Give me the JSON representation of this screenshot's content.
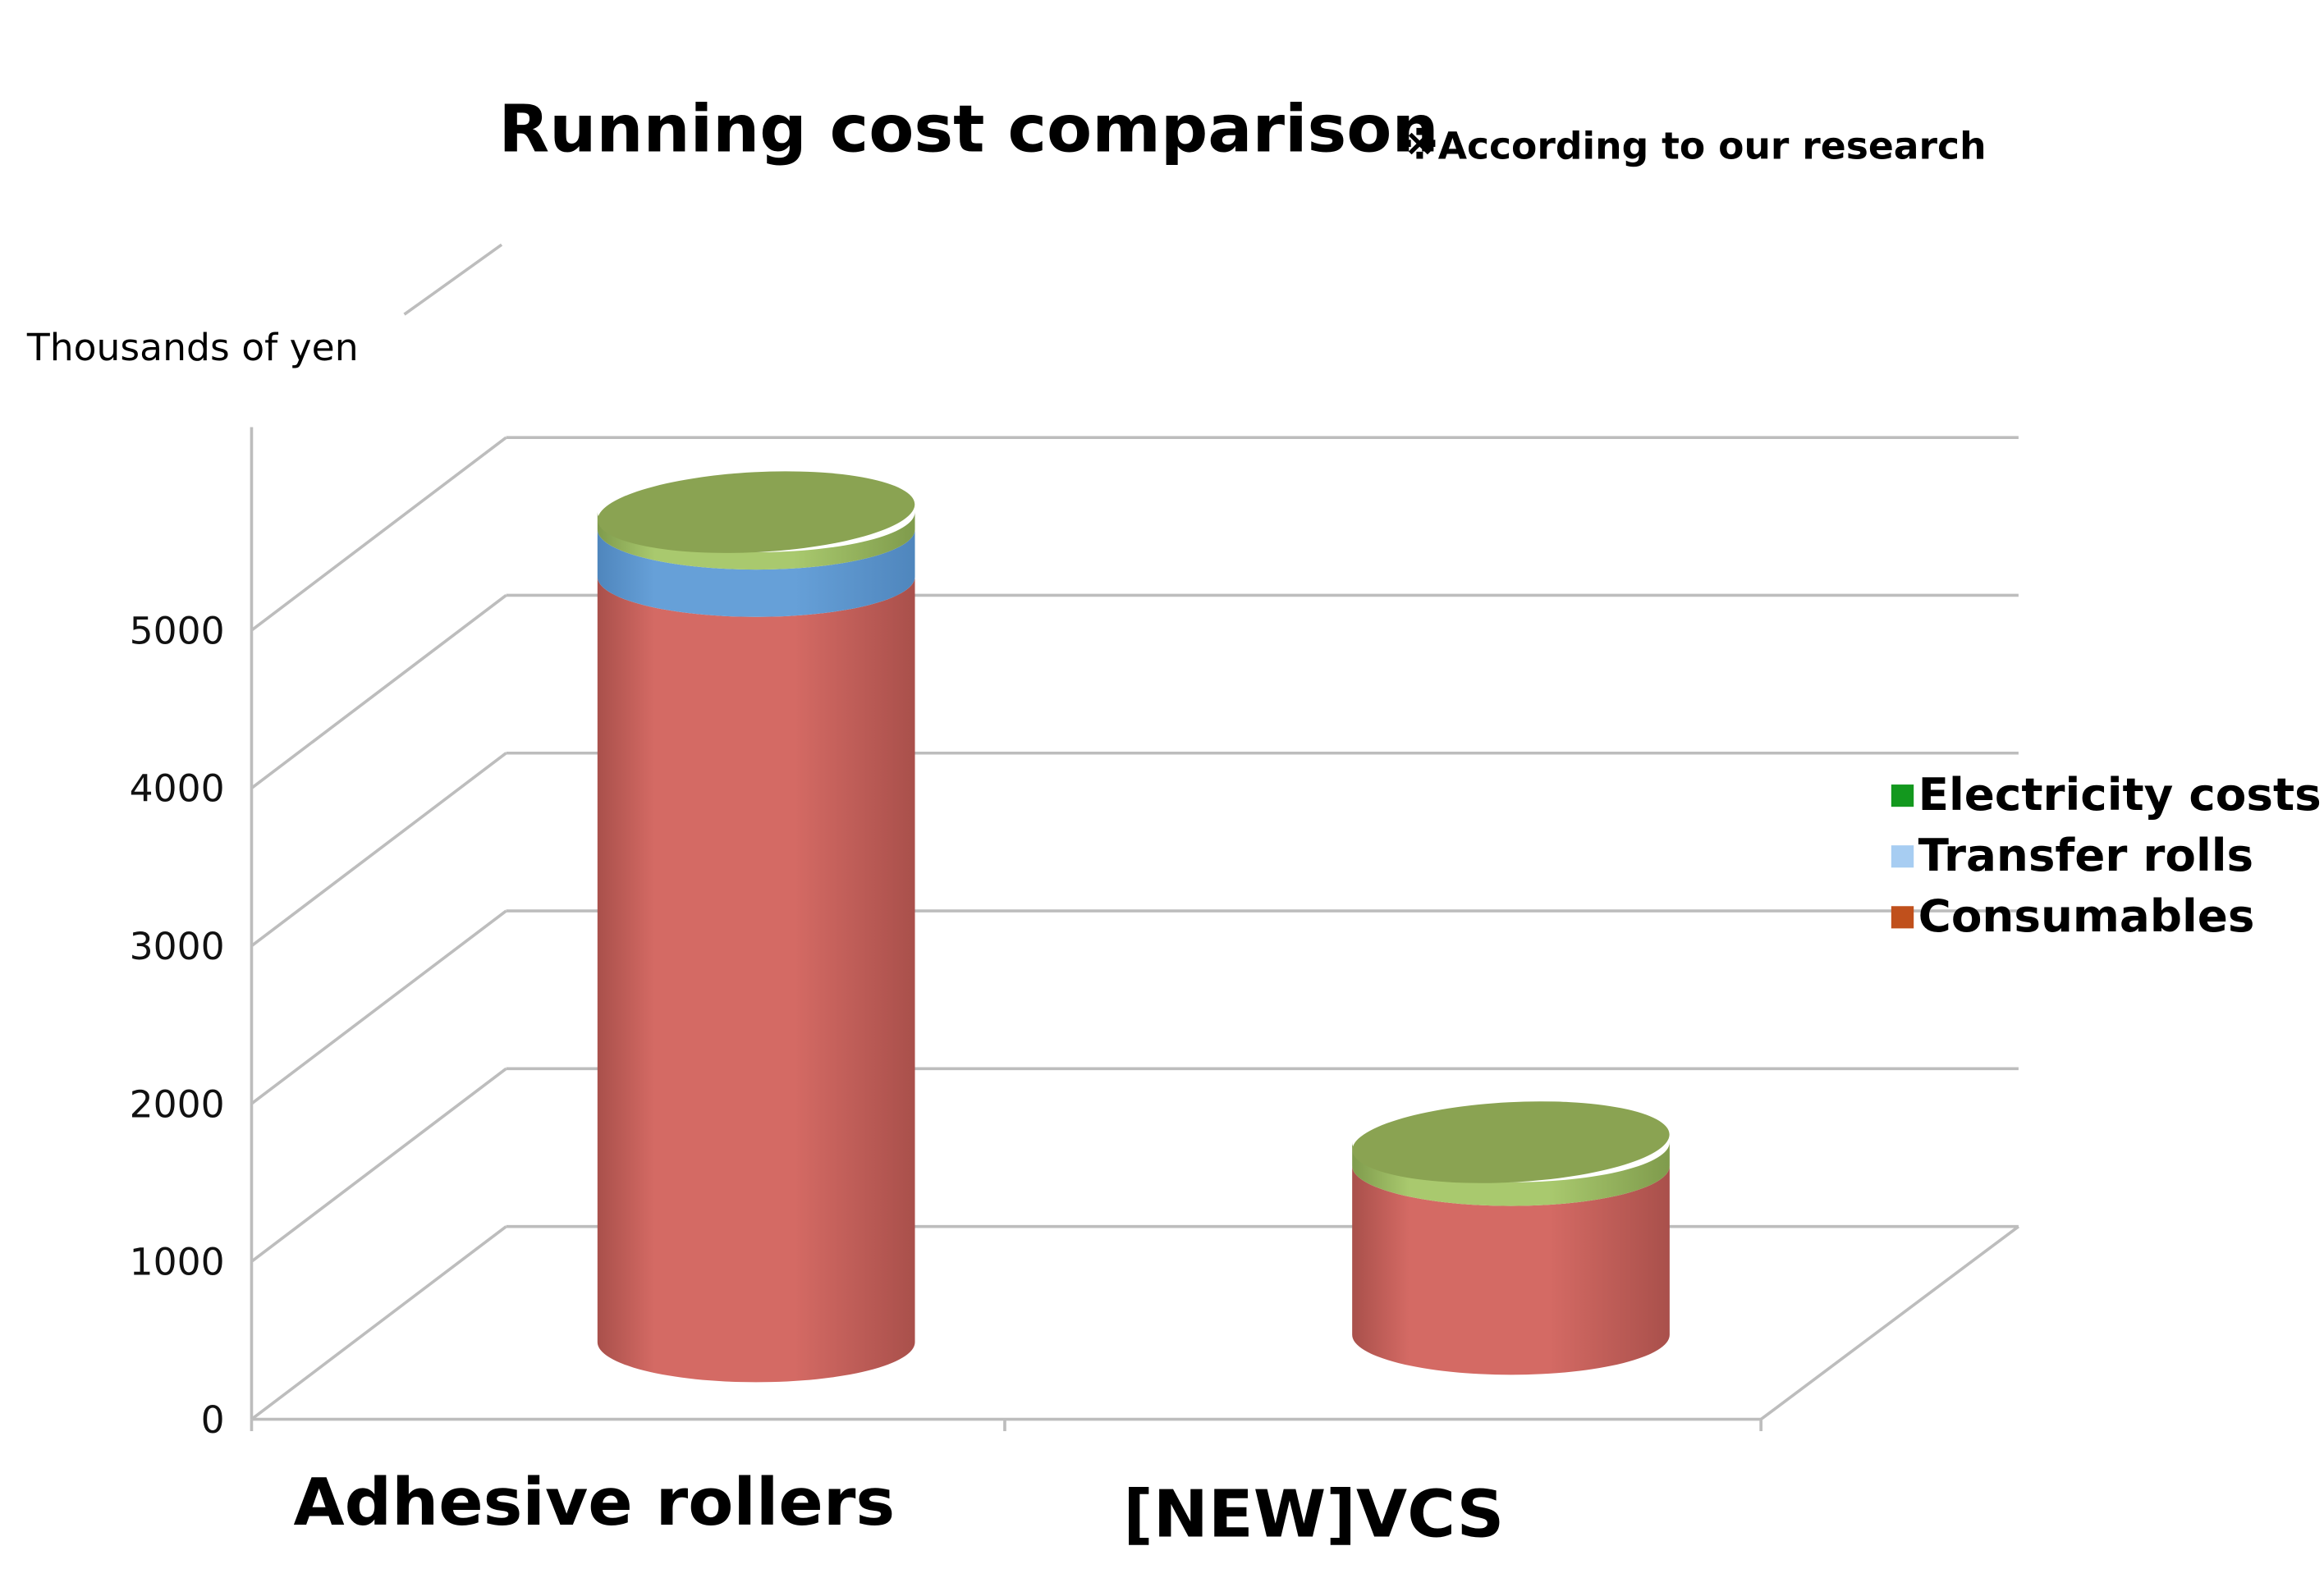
{
  "chart_data": {
    "type": "bar",
    "style": "3d-stacked-cylinder",
    "title": "Running cost comparison",
    "subtitle": "※According to our research",
    "ylabel": "Thousands of yen",
    "xlabel": "",
    "ylim": [
      0,
      5000
    ],
    "yticks": [
      "0",
      "1000",
      "2000",
      "3000",
      "4000",
      "5000"
    ],
    "grid": true,
    "legend_position": "right",
    "categories": [
      "Adhesive rollers",
      "[NEW]VCS"
    ],
    "series": [
      {
        "name": "Consumables",
        "legend_color": "#c0501c",
        "color": "#d46a64",
        "values": [
          4850,
          1070
        ]
      },
      {
        "name": "Transfer rolls",
        "legend_color": "#a7cdf2",
        "color": "#5e9bd6",
        "values": [
          300,
          0
        ]
      },
      {
        "name": "Electricity costs",
        "legend_color": "#13981e",
        "color": "#8aa352",
        "values": [
          110,
          150
        ]
      }
    ],
    "legend_order": [
      "Electricity costs",
      "Transfer rolls",
      "Consumables"
    ]
  }
}
